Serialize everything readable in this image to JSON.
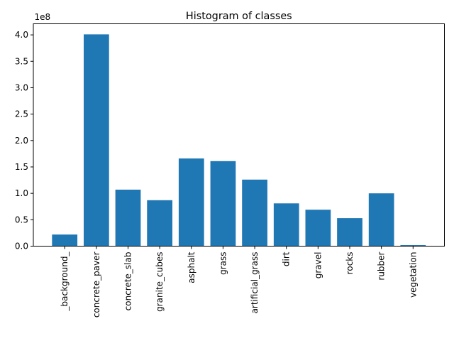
{
  "chart_data": {
    "type": "bar",
    "title": "Histogram of classes",
    "offset_label": "1e8",
    "categories": [
      "_background_",
      "concrete_paver",
      "concrete_slab",
      "granite_cubes",
      "asphalt",
      "grass",
      "artificial_grass",
      "dirt",
      "gravel",
      "rocks",
      "rubber",
      "vegetation"
    ],
    "values": [
      22000000,
      401000000,
      107000000,
      87000000,
      166000000,
      161000000,
      126000000,
      81000000,
      69000000,
      53000000,
      100000000,
      2000000
    ],
    "xlabel": "",
    "ylabel": "",
    "yticks": [
      0.0,
      0.5,
      1.0,
      1.5,
      2.0,
      2.5,
      3.0,
      3.5,
      4.0
    ],
    "ytick_scale": 100000000,
    "ylim": [
      0,
      421000000
    ],
    "bar_color": "#1f77b4",
    "axis_color": "#000000",
    "background_color": "#ffffff",
    "grid": false,
    "legend": null,
    "x_tick_label_rotation_deg": 90
  }
}
